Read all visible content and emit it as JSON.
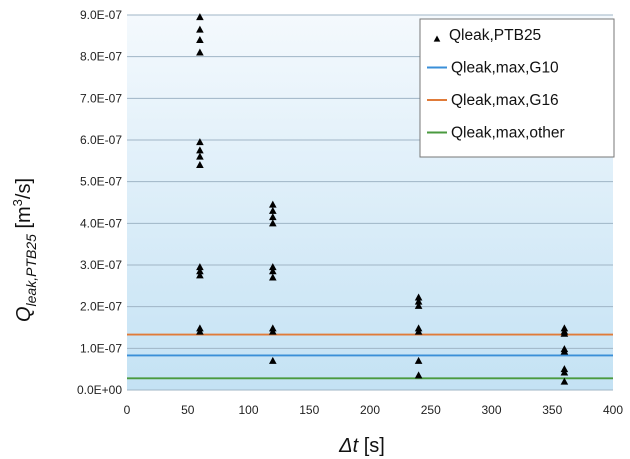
{
  "chart_data": {
    "type": "scatter",
    "xlabel": {
      "italic": "Δt",
      "rest": " [s]"
    },
    "ylabel": {
      "main": "Q",
      "sub": "leak,PTB25",
      "rest": " [m",
      "sup": "3",
      "end": "/s]"
    },
    "xlim": [
      0,
      400
    ],
    "ylim": [
      0,
      9e-07
    ],
    "xticks": [
      0,
      50,
      100,
      150,
      200,
      250,
      300,
      350,
      400
    ],
    "xtick_labels": [
      "0",
      "50",
      "100",
      "150",
      "200",
      "250",
      "300",
      "350",
      "400"
    ],
    "yticks": [
      0,
      1e-07,
      2e-07,
      3e-07,
      4e-07,
      5e-07,
      6e-07,
      7e-07,
      8e-07,
      9e-07
    ],
    "ytick_labels": [
      "0.0E+00",
      "1.0E-07",
      "2.0E-07",
      "3.0E-07",
      "4.0E-07",
      "5.0E-07",
      "6.0E-07",
      "7.0E-07",
      "8.0E-07",
      "9.0E-07"
    ],
    "grid": "horizontal",
    "legend_position": "top-right",
    "series": [
      {
        "name": "Qleak,PTB25",
        "kind": "scatter",
        "marker": "triangle",
        "color": "#000000",
        "points": [
          [
            60,
            8.95e-07
          ],
          [
            60,
            8.65e-07
          ],
          [
            60,
            8.4e-07
          ],
          [
            60,
            8.1e-07
          ],
          [
            60,
            5.95e-07
          ],
          [
            60,
            5.75e-07
          ],
          [
            60,
            5.6e-07
          ],
          [
            60,
            5.4e-07
          ],
          [
            60,
            2.95e-07
          ],
          [
            60,
            2.85e-07
          ],
          [
            60,
            2.75e-07
          ],
          [
            60,
            1.48e-07
          ],
          [
            60,
            1.4e-07
          ],
          [
            120,
            4.45e-07
          ],
          [
            120,
            4.3e-07
          ],
          [
            120,
            4.15e-07
          ],
          [
            120,
            4e-07
          ],
          [
            120,
            2.95e-07
          ],
          [
            120,
            2.85e-07
          ],
          [
            120,
            2.7e-07
          ],
          [
            120,
            1.48e-07
          ],
          [
            120,
            1.4e-07
          ],
          [
            120,
            7e-08
          ],
          [
            240,
            2.22e-07
          ],
          [
            240,
            2.12e-07
          ],
          [
            240,
            2.02e-07
          ],
          [
            240,
            1.48e-07
          ],
          [
            240,
            1.4e-07
          ],
          [
            240,
            7e-08
          ],
          [
            240,
            3.5e-08
          ],
          [
            360,
            1.48e-07
          ],
          [
            360,
            1.4e-07
          ],
          [
            360,
            1.35e-07
          ],
          [
            360,
            9.8e-08
          ],
          [
            360,
            9.2e-08
          ],
          [
            360,
            5e-08
          ],
          [
            360,
            4.2e-08
          ],
          [
            360,
            2e-08
          ]
        ]
      },
      {
        "name": "Qleak,max,G10",
        "kind": "hline",
        "y": 8.3e-08,
        "color": "#3a8fd8"
      },
      {
        "name": "Qleak,max,G16",
        "kind": "hline",
        "y": 1.33e-07,
        "color": "#e07b39"
      },
      {
        "name": "Qleak,max,other",
        "kind": "hline",
        "y": 2.8e-08,
        "color": "#4a9a3f"
      }
    ],
    "colors": {
      "plot_bg_top": "#f4f9fd",
      "plot_bg_bottom": "#c4e2f4",
      "grid": "#9fb5c6",
      "legend_bg": "#ffffff",
      "legend_border": "#777777"
    }
  }
}
